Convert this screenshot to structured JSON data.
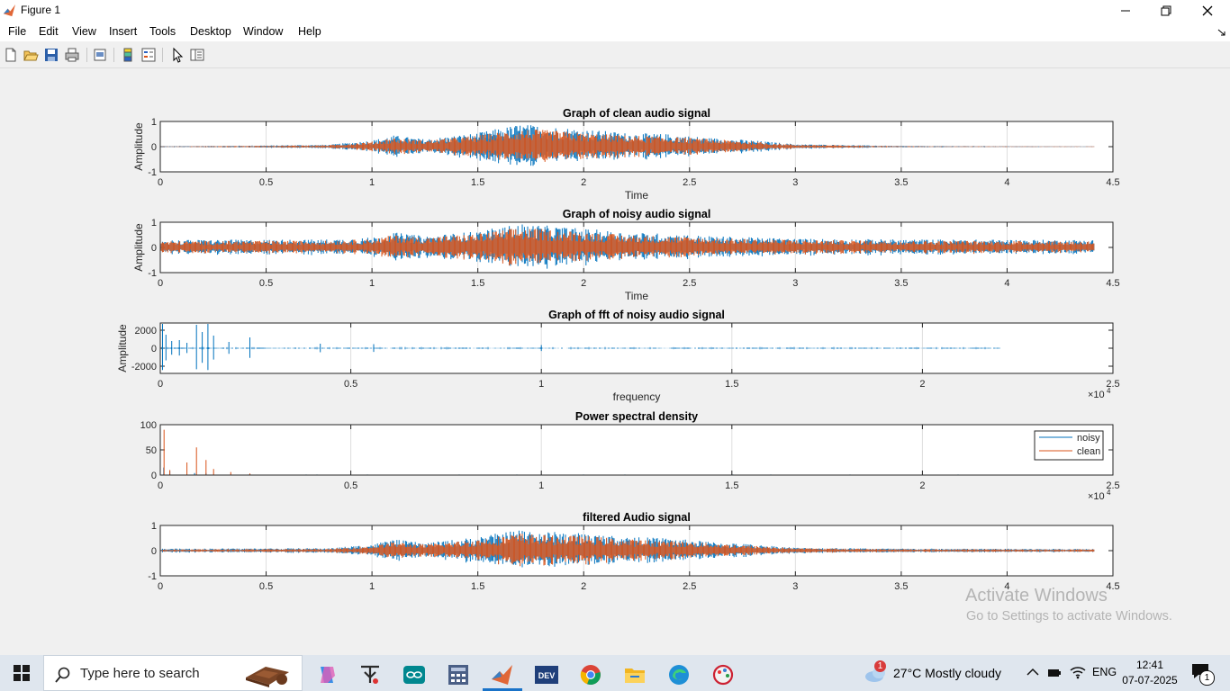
{
  "window": {
    "title": "Figure 1",
    "menu": [
      "File",
      "Edit",
      "View",
      "Insert",
      "Tools",
      "Desktop",
      "Window",
      "Help"
    ]
  },
  "toolbar_icons": [
    "new-figure-icon",
    "open-file-icon",
    "save-icon",
    "print-icon",
    "print-preview-icon",
    "colorbar-icon",
    "legend-icon",
    "pointer-icon",
    "property-inspector-icon"
  ],
  "chart_data": [
    {
      "type": "line",
      "title": "Graph of clean audio signal",
      "xlabel": "Time",
      "ylabel": "Amplitude",
      "xlim": [
        0,
        4.5
      ],
      "ylim": [
        -1,
        1
      ],
      "xticks": [
        "0",
        "0.5",
        "1",
        "1.5",
        "2",
        "2.5",
        "3",
        "3.5",
        "4",
        "4.5"
      ],
      "yticks": [
        "-1",
        "0",
        "1"
      ],
      "x_end": 4.41,
      "series": [
        {
          "color": "#0072bd",
          "envelope": [
            [
              0,
              0.02
            ],
            [
              0.4,
              0.04
            ],
            [
              0.8,
              0.08
            ],
            [
              1.0,
              0.25
            ],
            [
              1.1,
              0.45
            ],
            [
              1.25,
              0.3
            ],
            [
              1.5,
              0.55
            ],
            [
              1.7,
              0.9
            ],
            [
              1.85,
              0.8
            ],
            [
              2.0,
              0.7
            ],
            [
              2.2,
              0.55
            ],
            [
              2.4,
              0.5
            ],
            [
              2.6,
              0.35
            ],
            [
              2.8,
              0.25
            ],
            [
              3.0,
              0.1
            ],
            [
              3.5,
              0.03
            ],
            [
              4.4,
              0.01
            ]
          ]
        },
        {
          "color": "#d95319",
          "envelope": [
            [
              0,
              0.01
            ],
            [
              0.4,
              0.03
            ],
            [
              0.8,
              0.06
            ],
            [
              1.0,
              0.2
            ],
            [
              1.1,
              0.35
            ],
            [
              1.25,
              0.25
            ],
            [
              1.5,
              0.45
            ],
            [
              1.7,
              0.7
            ],
            [
              1.85,
              0.65
            ],
            [
              2.0,
              0.55
            ],
            [
              2.2,
              0.45
            ],
            [
              2.4,
              0.4
            ],
            [
              2.6,
              0.3
            ],
            [
              2.8,
              0.2
            ],
            [
              3.0,
              0.08
            ],
            [
              3.5,
              0.02
            ],
            [
              4.4,
              0.01
            ]
          ]
        }
      ]
    },
    {
      "type": "line",
      "title": "Graph of noisy audio signal",
      "xlabel": "Time",
      "ylabel": "Amplitude",
      "xlim": [
        0,
        4.5
      ],
      "ylim": [
        -1,
        1
      ],
      "xticks": [
        "0",
        "0.5",
        "1",
        "1.5",
        "2",
        "2.5",
        "3",
        "3.5",
        "4",
        "4.5"
      ],
      "yticks": [
        "-1",
        "0",
        "1"
      ],
      "x_end": 4.41,
      "series": [
        {
          "color": "#0072bd",
          "envelope": [
            [
              0,
              0.3
            ],
            [
              0.8,
              0.32
            ],
            [
              1.0,
              0.4
            ],
            [
              1.1,
              0.6
            ],
            [
              1.25,
              0.45
            ],
            [
              1.5,
              0.65
            ],
            [
              1.7,
              0.95
            ],
            [
              1.85,
              0.85
            ],
            [
              2.0,
              0.75
            ],
            [
              2.2,
              0.6
            ],
            [
              2.4,
              0.55
            ],
            [
              2.6,
              0.45
            ],
            [
              2.8,
              0.4
            ],
            [
              3.0,
              0.35
            ],
            [
              3.5,
              0.32
            ],
            [
              4.4,
              0.3
            ]
          ]
        },
        {
          "color": "#d95319",
          "envelope": [
            [
              0,
              0.25
            ],
            [
              0.8,
              0.27
            ],
            [
              1.0,
              0.33
            ],
            [
              1.1,
              0.5
            ],
            [
              1.25,
              0.4
            ],
            [
              1.5,
              0.55
            ],
            [
              1.7,
              0.8
            ],
            [
              1.85,
              0.7
            ],
            [
              2.0,
              0.62
            ],
            [
              2.2,
              0.5
            ],
            [
              2.4,
              0.45
            ],
            [
              2.6,
              0.38
            ],
            [
              2.8,
              0.33
            ],
            [
              3.0,
              0.3
            ],
            [
              3.5,
              0.27
            ],
            [
              4.4,
              0.25
            ]
          ]
        }
      ]
    },
    {
      "type": "line",
      "title": "Graph of fft of noisy audio signal",
      "xlabel": "frequency",
      "ylabel": "Amplitude",
      "xlim": [
        0,
        25000
      ],
      "ylim": [
        -2800,
        2800
      ],
      "xticks": [
        "0",
        "0.5",
        "1",
        "1.5",
        "2",
        "2.5"
      ],
      "yticks": [
        "-2000",
        "0",
        "2000"
      ],
      "exponent_label": "×10",
      "exponent_power": "4",
      "x_end": 22050,
      "series": [
        {
          "color": "#0072bd",
          "spikes": [
            [
              60,
              2700
            ],
            [
              150,
              1500
            ],
            [
              300,
              800
            ],
            [
              500,
              900
            ],
            [
              700,
              600
            ],
            [
              950,
              2600
            ],
            [
              1100,
              1800
            ],
            [
              1250,
              2700
            ],
            [
              1400,
              1400
            ],
            [
              1800,
              700
            ],
            [
              2350,
              1200
            ],
            [
              4200,
              500
            ],
            [
              5600,
              450
            ],
            [
              10000,
              350
            ]
          ],
          "baseline": 120
        }
      ]
    },
    {
      "type": "line",
      "title": "Power spectral density",
      "xlabel": "",
      "ylabel": "",
      "xlim": [
        0,
        25000
      ],
      "ylim": [
        0,
        100
      ],
      "xticks": [
        "0",
        "0.5",
        "1",
        "1.5",
        "2",
        "2.5"
      ],
      "yticks": [
        "0",
        "50",
        "100"
      ],
      "exponent_label": "×10",
      "exponent_power": "4",
      "x_end": 22050,
      "legend": {
        "position": "top-right",
        "entries": [
          "noisy",
          "clean"
        ]
      },
      "series": [
        {
          "name": "noisy",
          "color": "#0072bd",
          "spikes": [
            [
              90,
              15
            ],
            [
              250,
              8
            ],
            [
              900,
              4
            ],
            [
              1200,
              4
            ]
          ],
          "baseline": 1
        },
        {
          "name": "clean",
          "color": "#d95319",
          "spikes": [
            [
              100,
              90
            ],
            [
              250,
              10
            ],
            [
              700,
              25
            ],
            [
              950,
              55
            ],
            [
              1200,
              30
            ],
            [
              1400,
              12
            ],
            [
              1850,
              6
            ],
            [
              2350,
              3
            ]
          ],
          "baseline": 0
        }
      ]
    },
    {
      "type": "line",
      "title": "filtered Audio signal",
      "xlabel": "",
      "ylabel": "",
      "xlim": [
        0,
        4.5
      ],
      "ylim": [
        -1,
        1
      ],
      "xticks": [
        "0",
        "0.5",
        "1",
        "1.5",
        "2",
        "2.5",
        "3",
        "3.5",
        "4",
        "4.5"
      ],
      "yticks": [
        "-1",
        "0",
        "1"
      ],
      "x_end": 4.41,
      "series": [
        {
          "color": "#0072bd",
          "envelope": [
            [
              0,
              0.08
            ],
            [
              0.8,
              0.1
            ],
            [
              1.0,
              0.25
            ],
            [
              1.1,
              0.45
            ],
            [
              1.25,
              0.3
            ],
            [
              1.5,
              0.55
            ],
            [
              1.7,
              0.85
            ],
            [
              1.85,
              0.75
            ],
            [
              2.0,
              0.7
            ],
            [
              2.2,
              0.55
            ],
            [
              2.4,
              0.5
            ],
            [
              2.6,
              0.35
            ],
            [
              2.8,
              0.25
            ],
            [
              3.0,
              0.12
            ],
            [
              3.5,
              0.08
            ],
            [
              4.4,
              0.07
            ]
          ]
        },
        {
          "color": "#d95319",
          "envelope": [
            [
              0,
              0.05
            ],
            [
              0.8,
              0.07
            ],
            [
              1.0,
              0.2
            ],
            [
              1.1,
              0.35
            ],
            [
              1.25,
              0.25
            ],
            [
              1.5,
              0.45
            ],
            [
              1.7,
              0.7
            ],
            [
              1.85,
              0.6
            ],
            [
              2.0,
              0.6
            ],
            [
              2.2,
              0.45
            ],
            [
              2.4,
              0.4
            ],
            [
              2.6,
              0.3
            ],
            [
              2.8,
              0.2
            ],
            [
              3.0,
              0.1
            ],
            [
              3.5,
              0.06
            ],
            [
              4.4,
              0.05
            ]
          ]
        }
      ]
    }
  ],
  "watermark": {
    "line1": "Activate Windows",
    "line2": "Go to Settings to activate Windows."
  },
  "taskbar": {
    "search_placeholder": "Type here to search",
    "apps": [
      "copilot-icon",
      "tinkercad-icon",
      "arduino-icon",
      "calculator-icon",
      "matlab-icon",
      "devcpp-icon",
      "chrome-icon",
      "file-explorer-icon",
      "edge-icon",
      "paint-icon"
    ],
    "active_app": "matlab-icon",
    "weather": {
      "badge": "1",
      "text": "27°C  Mostly cloudy"
    },
    "language": "ENG",
    "time": "12:41",
    "date": "07-07-2025",
    "notification_count": "1",
    "colors": {
      "accent": "#1a73c8",
      "matlab": "#e16737"
    }
  }
}
